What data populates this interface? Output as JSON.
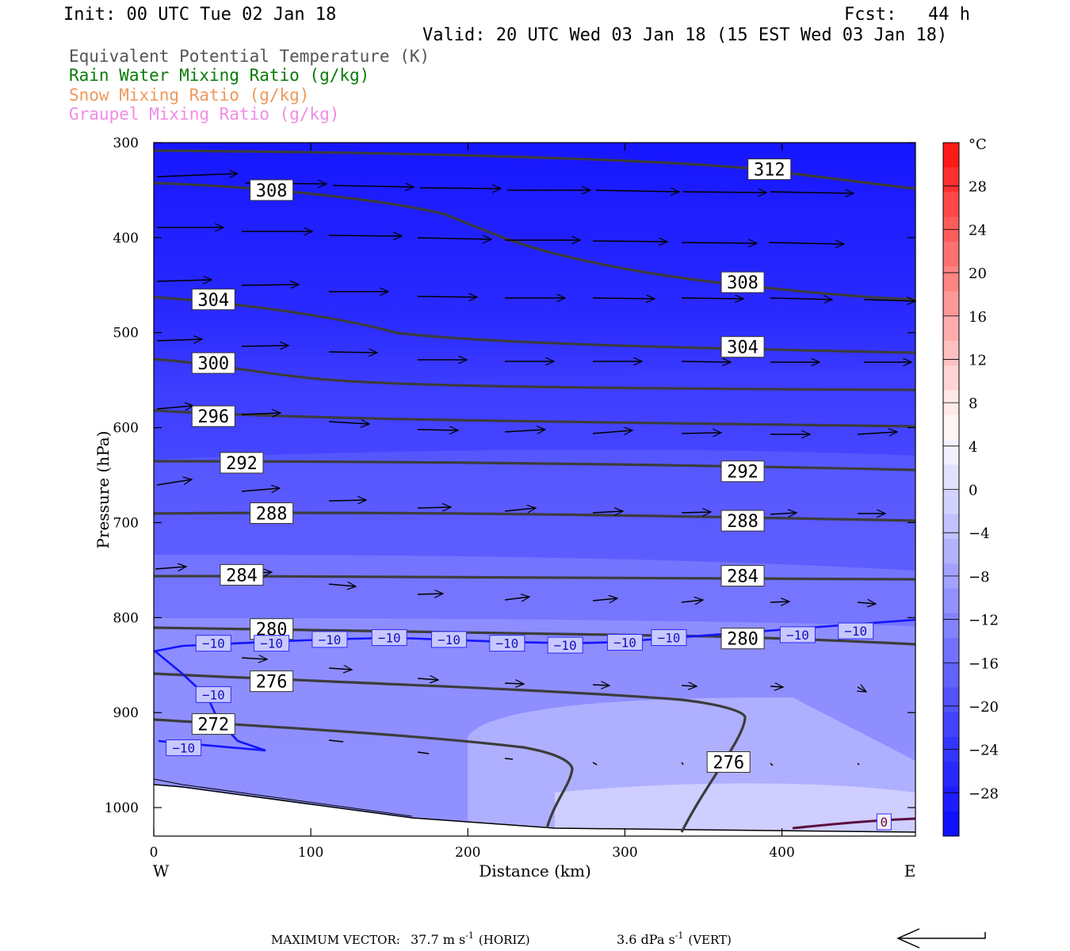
{
  "header": {
    "init": "Init: 00 UTC Tue 02 Jan 18",
    "fcst": "Fcst:   44 h",
    "valid": "Valid: 20 UTC Wed 03 Jan 18 (15 EST Wed 03 Jan 18)"
  },
  "fields": [
    {
      "label": "Equivalent Potential Temperature (K)",
      "color": "#555555"
    },
    {
      "label": "Rain Water Mixing Ratio (g/kg)",
      "color": "#0a7a0a"
    },
    {
      "label": "Snow Mixing Ratio (g/kg)",
      "color": "#f0985a"
    },
    {
      "label": "Graupel Mixing Ratio (g/kg)",
      "color": "#f08ce6"
    }
  ],
  "footer": {
    "max_vector_label": "MAXIMUM VECTOR:",
    "horiz": "37.7 m s",
    "horiz_unit": "(HORIZ)",
    "vert": "3.6 dPa s",
    "vert_unit": "(VERT)",
    "exp": "-1"
  },
  "chart_data": {
    "type": "contour",
    "xlabel": "Distance (km)",
    "ylabel": "Pressure (hPa)",
    "xlim": [
      0,
      485
    ],
    "ylim": [
      1030,
      300
    ],
    "x_ticks": [
      "0",
      "100",
      "200",
      "300",
      "400"
    ],
    "x_tick_values": [
      0,
      100,
      200,
      300,
      400
    ],
    "y_ticks": [
      "300",
      "400",
      "500",
      "600",
      "700",
      "800",
      "900",
      "1000"
    ],
    "y_tick_values": [
      300,
      400,
      500,
      600,
      700,
      800,
      900,
      1000
    ],
    "west_label": "W",
    "east_label": "E",
    "colorbar": {
      "unit": "°C",
      "labels": [
        "28",
        "24",
        "20",
        "16",
        "12",
        "8",
        "4",
        "0",
        "−4",
        "−8",
        "−12",
        "−16",
        "−20",
        "−24",
        "−28"
      ],
      "values": [
        28,
        24,
        20,
        16,
        12,
        8,
        4,
        0,
        -4,
        -8,
        -12,
        -16,
        -20,
        -24,
        -28
      ],
      "colors": [
        "#ff1a1a",
        "#ff3030",
        "#ff4848",
        "#ff5c5c",
        "#ff7070",
        "#ff8484",
        "#ff9898",
        "#ffacac",
        "#ffc0c0",
        "#ffd4d4",
        "#ffe8e8",
        "#fff4f4",
        "#f2f2ff",
        "#e2e2ff",
        "#d2d2ff",
        "#c2c2ff",
        "#b2b2ff",
        "#a2a2ff",
        "#9292ff",
        "#8282ff",
        "#7272ff",
        "#6262ff",
        "#5252ff",
        "#4242ff",
        "#3434ff",
        "#2828ff",
        "#1c1cff",
        "#1010ff"
      ]
    },
    "theta_e_labels": [
      {
        "text": "312",
        "x": 392,
        "p": 328
      },
      {
        "text": "308",
        "x": 75,
        "p": 350
      },
      {
        "text": "308",
        "x": 375,
        "p": 447
      },
      {
        "text": "304",
        "x": 38,
        "p": 465
      },
      {
        "text": "304",
        "x": 375,
        "p": 515
      },
      {
        "text": "300",
        "x": 38,
        "p": 532
      },
      {
        "text": "296",
        "x": 38,
        "p": 588
      },
      {
        "text": "292",
        "x": 56,
        "p": 637
      },
      {
        "text": "292",
        "x": 375,
        "p": 646
      },
      {
        "text": "288",
        "x": 75,
        "p": 690
      },
      {
        "text": "288",
        "x": 375,
        "p": 698
      },
      {
        "text": "284",
        "x": 56,
        "p": 755
      },
      {
        "text": "284",
        "x": 375,
        "p": 756
      },
      {
        "text": "280",
        "x": 75,
        "p": 812
      },
      {
        "text": "280",
        "x": 375,
        "p": 822
      },
      {
        "text": "276",
        "x": 75,
        "p": 867
      },
      {
        "text": "276",
        "x": 366,
        "p": 952
      },
      {
        "text": "272",
        "x": 38,
        "p": 912
      }
    ],
    "temp_labels": [
      {
        "text": "−10",
        "x": 38,
        "p": 827
      },
      {
        "text": "−10",
        "x": 75,
        "p": 827
      },
      {
        "text": "−10",
        "x": 112,
        "p": 823
      },
      {
        "text": "−10",
        "x": 150,
        "p": 821
      },
      {
        "text": "−10",
        "x": 188,
        "p": 823
      },
      {
        "text": "−10",
        "x": 225,
        "p": 827
      },
      {
        "text": "−10",
        "x": 262,
        "p": 829
      },
      {
        "text": "−10",
        "x": 300,
        "p": 826
      },
      {
        "text": "−10",
        "x": 328,
        "p": 821
      },
      {
        "text": "−10",
        "x": 410,
        "p": 818
      },
      {
        "text": "−10",
        "x": 447,
        "p": 814
      },
      {
        "text": "−10",
        "x": 38,
        "p": 881
      },
      {
        "text": "−10",
        "x": 19,
        "p": 937
      },
      {
        "text": "0",
        "x": 465,
        "p": 1015
      }
    ]
  }
}
